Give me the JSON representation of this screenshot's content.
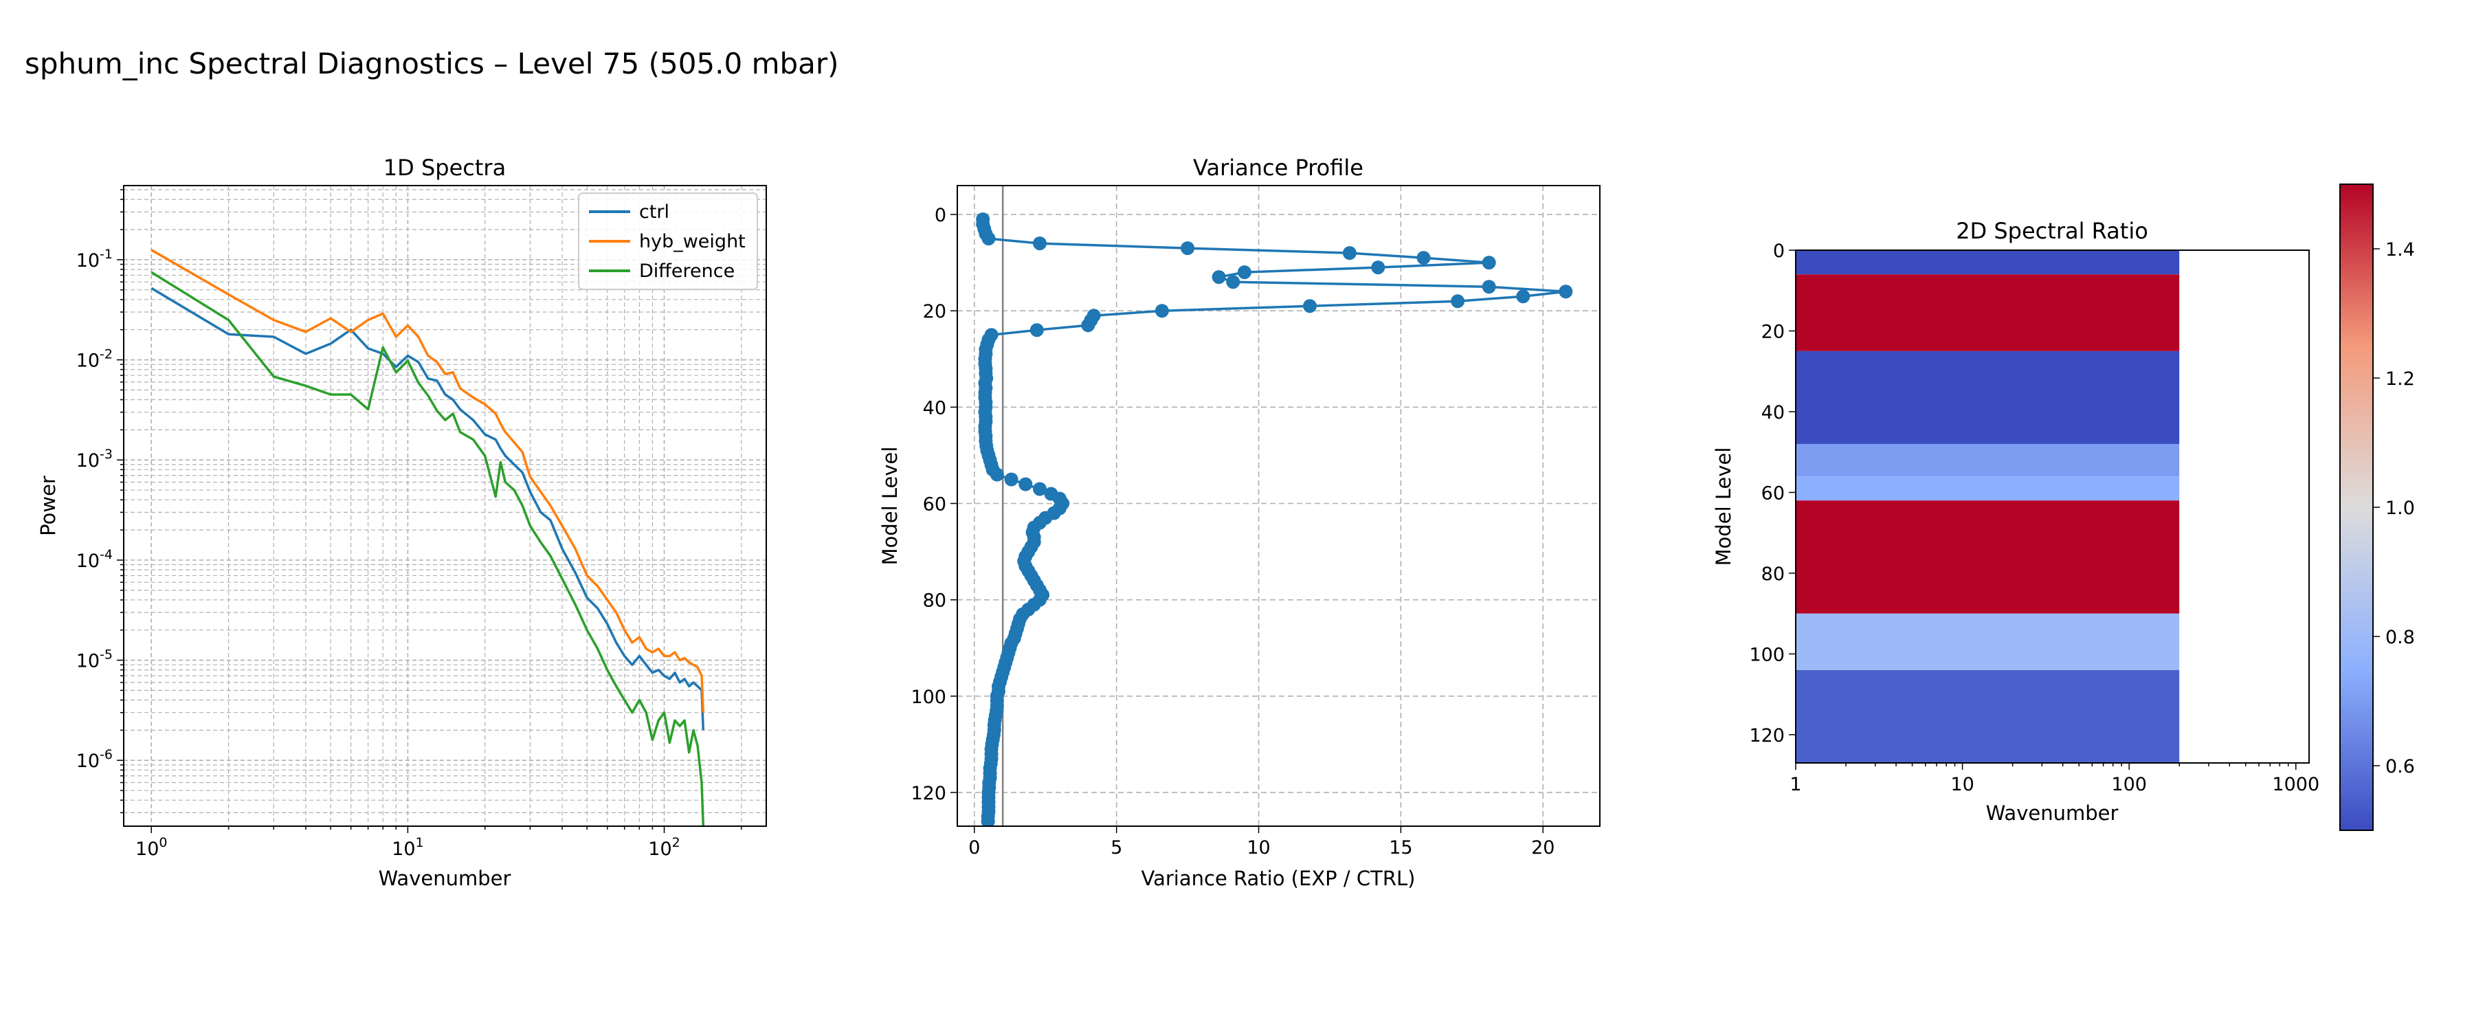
{
  "figure": {
    "title": "sphum_inc Spectral Diagnostics – Level 75 (505.0 mbar)"
  },
  "chart_data": [
    {
      "type": "line",
      "title": "1D Spectra",
      "xlabel": "Wavenumber",
      "ylabel": "Power",
      "xscale": "log",
      "yscale": "log",
      "xlim": [
        0.78,
        250
      ],
      "ylim": [
        2.2e-07,
        0.55
      ],
      "grid": true,
      "legend": "top-right",
      "x_tick_labels": [
        "10^0",
        "10^1",
        "10^2"
      ],
      "y_tick_labels": [
        "10^-6",
        "10^-5",
        "10^-4",
        "10^-3",
        "10^-2",
        "10^-1"
      ],
      "x": [
        1,
        2,
        3,
        4,
        5,
        6,
        7,
        8,
        9,
        10,
        11,
        12,
        13,
        14,
        15,
        16,
        18,
        20,
        22,
        23,
        24,
        26,
        28,
        30,
        33,
        36,
        40,
        45,
        50,
        55,
        60,
        65,
        70,
        75,
        80,
        85,
        90,
        95,
        100,
        105,
        110,
        115,
        120,
        125,
        130,
        135,
        140,
        142
      ],
      "series": [
        {
          "name": "ctrl",
          "color": "#1f77b4",
          "values": [
            0.052,
            0.018,
            0.017,
            0.0115,
            0.0145,
            0.02,
            0.013,
            0.0115,
            0.0085,
            0.011,
            0.0095,
            0.0065,
            0.0062,
            0.0045,
            0.004,
            0.0032,
            0.0025,
            0.0018,
            0.0016,
            0.0013,
            0.0011,
            0.0009,
            0.00075,
            0.00048,
            0.0003,
            0.00025,
            0.00013,
            7.5e-05,
            4.2e-05,
            3.3e-05,
            2.3e-05,
            1.5e-05,
            1.1e-05,
            9e-06,
            1.1e-05,
            9e-06,
            7.5e-06,
            8e-06,
            7e-06,
            6.5e-06,
            7.5e-06,
            6e-06,
            6.5e-06,
            5.5e-06,
            6e-06,
            5.5e-06,
            5e-06,
            2e-06
          ]
        },
        {
          "name": "hyb_weight",
          "color": "#ff7f0e",
          "values": [
            0.125,
            0.045,
            0.025,
            0.019,
            0.026,
            0.019,
            0.025,
            0.029,
            0.017,
            0.022,
            0.017,
            0.011,
            0.0095,
            0.0072,
            0.0075,
            0.0052,
            0.0042,
            0.0036,
            0.0029,
            0.0023,
            0.0019,
            0.0015,
            0.0012,
            0.00068,
            0.00048,
            0.00035,
            0.00022,
            0.00013,
            7e-05,
            5.5e-05,
            4e-05,
            3e-05,
            2e-05,
            1.5e-05,
            1.7e-05,
            1.3e-05,
            1.2e-05,
            1.3e-05,
            1.1e-05,
            1.1e-05,
            1.2e-05,
            1e-05,
            1.05e-05,
            9.5e-06,
            9e-06,
            8.5e-06,
            7e-06,
            3e-06
          ]
        },
        {
          "name": "Difference",
          "color": "#2ca02c",
          "values": [
            0.075,
            0.025,
            0.0068,
            0.0055,
            0.0045,
            0.0045,
            0.0032,
            0.0133,
            0.0075,
            0.0098,
            0.0059,
            0.0044,
            0.0031,
            0.0025,
            0.0029,
            0.0019,
            0.0016,
            0.0011,
            0.00043,
            0.00095,
            0.0006,
            0.0005,
            0.00035,
            0.00022,
            0.00015,
            0.00011,
            6.5e-05,
            3.6e-05,
            2e-05,
            1.3e-05,
            8e-06,
            5.5e-06,
            4e-06,
            3e-06,
            4e-06,
            3e-06,
            1.6e-06,
            2.5e-06,
            3e-06,
            1.5e-06,
            2.5e-06,
            2.2e-06,
            2.5e-06,
            1.2e-06,
            2e-06,
            1.4e-06,
            6e-07,
            2.2e-07
          ]
        }
      ]
    },
    {
      "type": "line",
      "title": "Variance Profile",
      "xlabel": "Variance Ratio (EXP / CTRL)",
      "ylabel": "Model Level",
      "xlim": [
        -0.6,
        22
      ],
      "ylim": [
        127,
        -6
      ],
      "y_inverted": true,
      "grid": true,
      "reference_line_x": 1,
      "x_ticks": [
        0,
        5,
        10,
        15,
        20
      ],
      "y_ticks": [
        0,
        20,
        40,
        60,
        80,
        100,
        120
      ],
      "marker_color": "#1f77b4",
      "levels": [
        1,
        2,
        3,
        4,
        5,
        6,
        7,
        8,
        9,
        10,
        11,
        12,
        13,
        14,
        15,
        16,
        17,
        18,
        19,
        20,
        21,
        22,
        23,
        24,
        25,
        26,
        27,
        28,
        29,
        30,
        31,
        32,
        33,
        34,
        35,
        36,
        37,
        38,
        39,
        40,
        41,
        42,
        43,
        44,
        45,
        46,
        47,
        48,
        49,
        50,
        51,
        52,
        53,
        54,
        55,
        56,
        57,
        58,
        59,
        60,
        61,
        62,
        63,
        64,
        65,
        66,
        67,
        68,
        69,
        70,
        71,
        72,
        73,
        74,
        75,
        76,
        77,
        78,
        79,
        80,
        81,
        82,
        83,
        84,
        85,
        86,
        87,
        88,
        89,
        90,
        91,
        92,
        93,
        94,
        95,
        96,
        97,
        98,
        99,
        100,
        101,
        102,
        103,
        104,
        105,
        106,
        107,
        108,
        109,
        110,
        111,
        112,
        113,
        114,
        115,
        116,
        117,
        118,
        119,
        120,
        121,
        122,
        123,
        124,
        125,
        126
      ],
      "ratios": [
        0.3,
        0.3,
        0.35,
        0.4,
        0.5,
        2.3,
        7.5,
        13.2,
        15.8,
        18.1,
        14.2,
        9.5,
        8.6,
        9.1,
        18.1,
        20.8,
        19.3,
        17.0,
        11.8,
        6.6,
        4.2,
        4.1,
        4.0,
        2.2,
        0.6,
        0.5,
        0.45,
        0.4,
        0.4,
        0.38,
        0.38,
        0.4,
        0.4,
        0.42,
        0.38,
        0.4,
        0.38,
        0.38,
        0.4,
        0.4,
        0.38,
        0.4,
        0.4,
        0.38,
        0.38,
        0.4,
        0.4,
        0.42,
        0.45,
        0.5,
        0.55,
        0.6,
        0.65,
        0.8,
        1.3,
        1.8,
        2.3,
        2.7,
        3.0,
        3.1,
        3.0,
        2.8,
        2.5,
        2.3,
        2.1,
        2.05,
        2.1,
        2.1,
        2.0,
        1.9,
        1.8,
        1.75,
        1.8,
        1.9,
        2.0,
        2.1,
        2.2,
        2.3,
        2.4,
        2.3,
        2.1,
        1.9,
        1.7,
        1.6,
        1.55,
        1.5,
        1.45,
        1.4,
        1.3,
        1.25,
        1.2,
        1.15,
        1.1,
        1.05,
        1.0,
        0.95,
        0.9,
        0.85,
        0.85,
        0.8,
        0.8,
        0.8,
        0.78,
        0.75,
        0.72,
        0.7,
        0.7,
        0.68,
        0.65,
        0.62,
        0.6,
        0.6,
        0.6,
        0.58,
        0.55,
        0.55,
        0.55,
        0.52,
        0.52,
        0.5,
        0.5,
        0.5,
        0.5,
        0.5,
        0.48,
        0.48
      ]
    },
    {
      "type": "heatmap",
      "title": "2D Spectral Ratio",
      "xlabel": "Wavenumber",
      "ylabel": "Model Level",
      "xscale": "log",
      "xlim": [
        1,
        1200
      ],
      "ylim": [
        127,
        0
      ],
      "y_inverted": true,
      "x_tick_labels": [
        "1",
        "10",
        "100",
        "1000"
      ],
      "y_ticks": [
        0,
        20,
        40,
        60,
        80,
        100,
        120
      ],
      "data_x_max": 200,
      "colormap": "coolwarm",
      "colorbar": {
        "min": 0.5,
        "max": 1.5,
        "ticks": [
          "0.6",
          "0.8",
          "1.0",
          "1.2",
          "1.4"
        ]
      },
      "level_bands": [
        {
          "from": 0,
          "to": 6,
          "ratio": 0.5
        },
        {
          "from": 6,
          "to": 25,
          "ratio": 1.5
        },
        {
          "from": 25,
          "to": 48,
          "ratio": 0.5
        },
        {
          "from": 48,
          "to": 56,
          "ratio": 0.7
        },
        {
          "from": 56,
          "to": 62,
          "ratio": 0.75
        },
        {
          "from": 62,
          "to": 90,
          "ratio": 1.5
        },
        {
          "from": 90,
          "to": 104,
          "ratio": 0.8
        },
        {
          "from": 104,
          "to": 127,
          "ratio": 0.55
        }
      ]
    }
  ]
}
